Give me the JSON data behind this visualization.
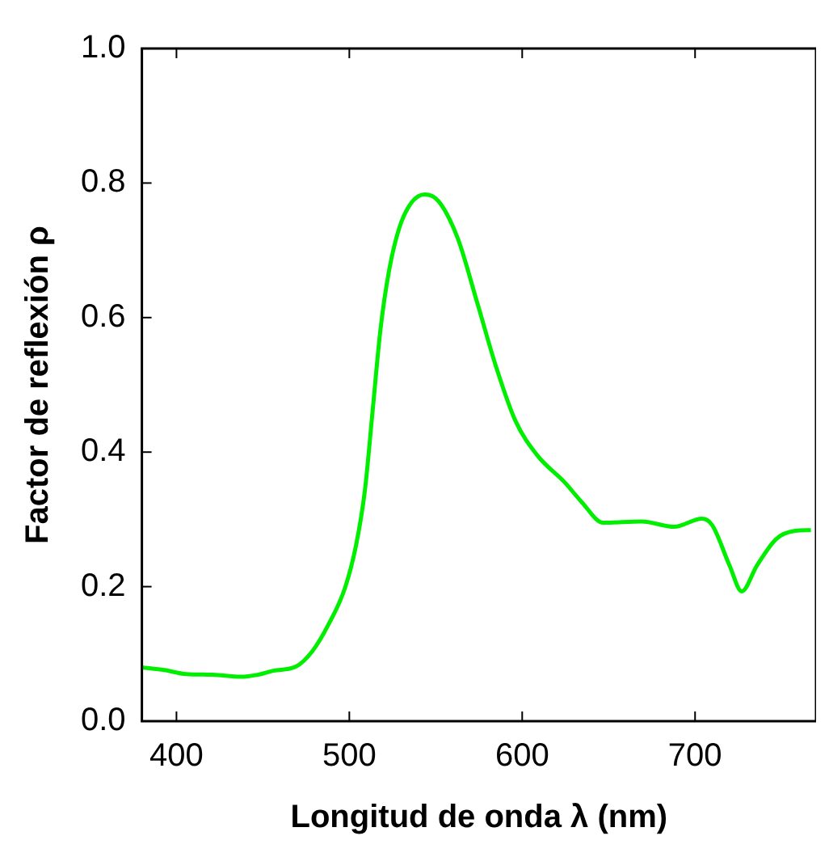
{
  "chart_data": {
    "type": "line",
    "xlabel": "Longitud de onda λ (nm)",
    "ylabel": "Factor de reflexión ρ",
    "xlim": [
      380,
      770
    ],
    "xticks": [
      400,
      500,
      600,
      700
    ],
    "ylim": [
      0,
      1
    ],
    "yticks": [
      "0.0",
      0.2,
      0.4,
      0.6,
      0.8,
      "1.0"
    ],
    "grid": false,
    "legend": false,
    "marker": "none",
    "line_style": "solid",
    "series": [
      {
        "color": "#00ee00",
        "x": [
          380,
          393,
          405.5,
          421,
          437,
          447,
          456,
          469,
          478.6,
          488,
          497.6,
          504,
          509,
          513.5,
          518,
          523,
          529,
          535.7,
          543.6,
          551.6,
          562.7,
          574,
          585,
          596,
          608.8,
          624.6,
          634,
          647,
          669,
          688,
          704,
          710,
          720,
          727,
          735.7,
          747,
          758,
          767
        ],
        "values": [
          0.08,
          0.076,
          0.07,
          0.069,
          0.066,
          0.069,
          0.075,
          0.081,
          0.104,
          0.144,
          0.199,
          0.263,
          0.343,
          0.462,
          0.582,
          0.67,
          0.734,
          0.77,
          0.783,
          0.773,
          0.718,
          0.622,
          0.526,
          0.447,
          0.395,
          0.355,
          0.327,
          0.295,
          0.297,
          0.289,
          0.301,
          0.291,
          0.231,
          0.193,
          0.231,
          0.271,
          0.283,
          0.284
        ]
      }
    ]
  }
}
